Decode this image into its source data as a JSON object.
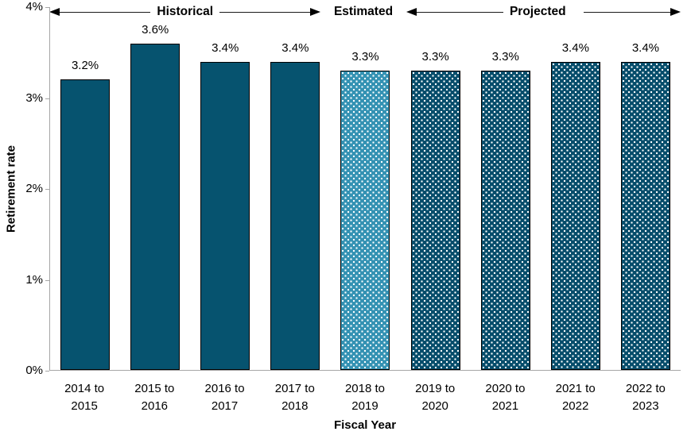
{
  "chart_data": {
    "type": "bar",
    "title": "",
    "xlabel": "Fiscal Year",
    "ylabel": "Retirement rate",
    "ylim": [
      0,
      4
    ],
    "y_tick_labels": [
      "0%",
      "1%",
      "2%",
      "3%",
      "4%"
    ],
    "grid": false,
    "legend_position": "none",
    "categories": [
      "2014 to 2015",
      "2015 to 2016",
      "2016 to 2017",
      "2017 to 2018",
      "2018 to 2019",
      "2019 to 2020",
      "2020 to 2021",
      "2021 to 2022",
      "2022 to 2023"
    ],
    "values": [
      3.2,
      3.6,
      3.4,
      3.4,
      3.3,
      3.3,
      3.3,
      3.4,
      3.4
    ],
    "value_labels": [
      "3.2%",
      "3.6%",
      "3.4%",
      "3.4%",
      "3.3%",
      "3.3%",
      "3.3%",
      "3.4%",
      "3.4%"
    ],
    "segments": [
      "historical",
      "historical",
      "historical",
      "historical",
      "estimated",
      "projected",
      "projected",
      "projected",
      "projected"
    ],
    "annotations": {
      "historical": "Historical",
      "estimated": "Estimated",
      "projected": "Projected"
    },
    "colors": {
      "historical": "#06536f",
      "estimated": "#3492b3",
      "projected": "#064d6b",
      "bar_border": "#000000",
      "axis": "#a6a6a6",
      "text": "#000000"
    }
  }
}
